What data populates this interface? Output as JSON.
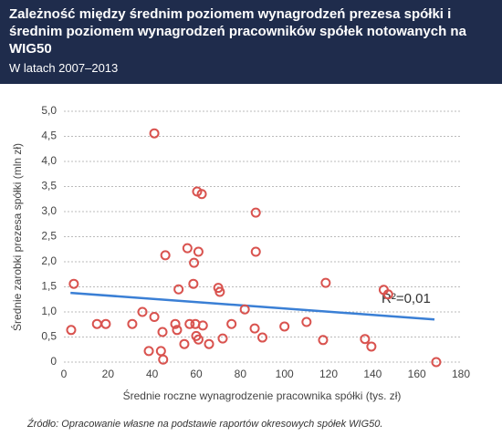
{
  "chart_data": {
    "type": "scatter",
    "title": "Zależność między średnim poziomem wynagrodzeń prezesa spółki i średnim poziomem wynagrodzeń pracowników spółek notowanych na WIG50",
    "subtitle": "W latach 2007–2013",
    "x_label": "Średnie roczne wynagrodzenie pracownika spółki (tys. zł)",
    "y_label": "Średnie zarobki prezesa spółki (mln zł)",
    "annotation": "R²=0,01",
    "source": "Źródło: Opracowanie własne na podstawie raportów okresowych spółek WIG50.",
    "color": "#d9534f",
    "x": [
      3.3,
      4.5,
      15,
      19,
      31,
      35.6,
      38.5,
      41,
      41,
      44,
      44.7,
      45,
      46,
      50.5,
      51.3,
      52,
      54.6,
      56,
      57,
      58.7,
      59,
      59.6,
      60,
      61,
      61,
      60.4,
      62.5,
      63,
      65.8,
      70,
      70.7,
      72,
      76,
      82,
      86.5,
      87,
      87,
      90,
      100,
      110,
      117.5,
      118.7,
      136.5,
      139.4,
      145,
      147,
      168.8
    ],
    "values": [
      0.64,
      1.56,
      0.76,
      0.76,
      0.76,
      1.0,
      0.22,
      0.9,
      4.56,
      0.22,
      0.6,
      0.05,
      2.13,
      0.76,
      0.64,
      1.45,
      0.36,
      2.27,
      0.76,
      1.56,
      1.98,
      0.76,
      0.52,
      0.45,
      2.2,
      3.4,
      3.35,
      0.73,
      0.36,
      1.48,
      1.4,
      0.47,
      0.76,
      1.05,
      0.67,
      2.98,
      2.2,
      0.49,
      0.71,
      0.8,
      0.44,
      1.58,
      0.46,
      0.31,
      1.44,
      1.35,
      0.0
    ],
    "trendline": {
      "color": "#3a7fd5",
      "x": [
        3,
        168
      ],
      "values": [
        1.38,
        0.85
      ]
    },
    "xlim": [
      0,
      180
    ],
    "xticks": [
      0,
      20,
      40,
      60,
      80,
      100,
      120,
      140,
      160,
      180
    ],
    "ylim": [
      0,
      5
    ],
    "yticks": [
      0,
      {
        "value": 0.5,
        "label": "0,5"
      },
      {
        "value": 1,
        "label": "1,0"
      },
      {
        "value": 1.5,
        "label": "1,5"
      },
      {
        "value": 2,
        "label": "2,0"
      },
      {
        "value": 2.5,
        "label": "2,5"
      },
      {
        "value": 3,
        "label": "3,0"
      },
      {
        "value": 3.5,
        "label": "3,5"
      },
      {
        "value": 4,
        "label": "4,0"
      },
      {
        "value": 4.5,
        "label": "4,5"
      },
      {
        "value": 5,
        "label": "5,0"
      }
    ],
    "grid": true
  }
}
